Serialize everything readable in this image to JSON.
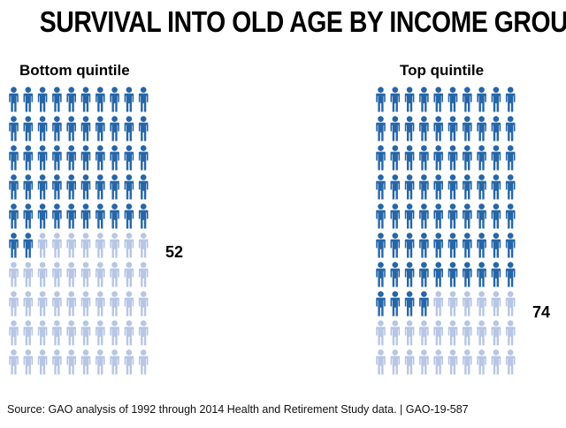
{
  "title": "SURVIVAL INTO OLD AGE BY INCOME GROUP",
  "source": "Source: GAO analysis of 1992 through 2014 Health and Retirement Study data.  |  GAO-19-587",
  "colors": {
    "survived": "#2666a7",
    "not_survived": "#b7c6e4"
  },
  "chart_data": [
    {
      "type": "pictogram",
      "title": "Bottom quintile",
      "total": 100,
      "value": 52,
      "value_label": "52"
    },
    {
      "type": "pictogram",
      "title": "Top quintile",
      "total": 100,
      "value": 74,
      "value_label": "74"
    }
  ]
}
